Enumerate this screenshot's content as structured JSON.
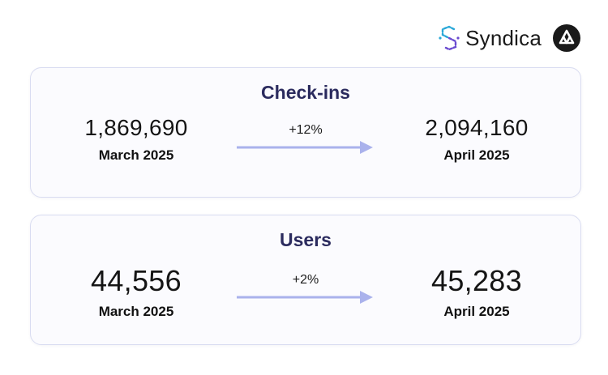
{
  "brand": {
    "name": "Syndica",
    "logo_icon": "syndica-s-logo-icon",
    "partner_icon": "partner-triangle-logo-icon"
  },
  "colors": {
    "title": "#2b2b5e",
    "arrow": "#aab2ec",
    "card_border": "#d9dcf1",
    "card_background": "#fbfbfe",
    "logo_cyan": "#2aa8d8",
    "logo_purple": "#6a4bd0"
  },
  "cards": {
    "checkins": {
      "title": "Check-ins",
      "from_value": "1,869,690",
      "from_period": "March 2025",
      "change": "+12%",
      "to_value": "2,094,160",
      "to_period": "April 2025"
    },
    "users": {
      "title": "Users",
      "from_value": "44,556",
      "from_period": "March 2025",
      "change": "+2%",
      "to_value": "45,283",
      "to_period": "April 2025"
    }
  }
}
